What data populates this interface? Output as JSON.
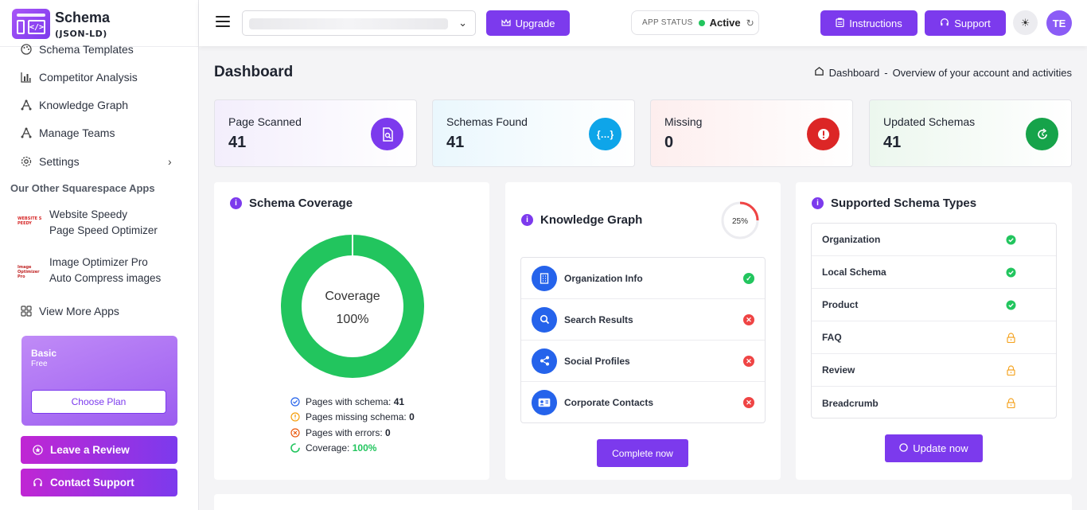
{
  "app": {
    "title": "Schema",
    "subtitle": "(JSON-LD)"
  },
  "sidebar": {
    "items": [
      {
        "label": "Schema Templates",
        "icon": "palette-icon"
      },
      {
        "label": "Competitor Analysis",
        "icon": "bar-chart-icon"
      },
      {
        "label": "Knowledge Graph",
        "icon": "graph-icon"
      },
      {
        "label": "Manage Teams",
        "icon": "team-icon"
      },
      {
        "label": "Settings",
        "icon": "gear-icon"
      }
    ],
    "section_label": "Our Other Squarespace Apps",
    "apps": [
      {
        "line1": "Website Speedy",
        "line2": "Page Speed Optimizer",
        "logo_text": "WEBSITE SPEEDY"
      },
      {
        "line1": "Image Optimizer Pro",
        "line2": "Auto Compress images",
        "logo_text": "Image Optimizer Pro"
      }
    ],
    "view_more": "View More Apps",
    "plan": {
      "name": "Basic",
      "tier": "Free",
      "button": "Choose Plan"
    },
    "review_button": "Leave a Review",
    "support_button": "Contact Support"
  },
  "header": {
    "upgrade": "Upgrade",
    "status_label": "APP STATUS",
    "status_value": "Active",
    "instructions": "Instructions",
    "support": "Support",
    "avatar": "TE"
  },
  "page": {
    "title": "Dashboard",
    "crumb_page": "Dashboard",
    "crumb_sep": "-",
    "crumb_desc": "Overview of your account and activities"
  },
  "stats": [
    {
      "label": "Page Scanned",
      "value": "41",
      "color": "#7c3aed",
      "icon": "page-search-icon"
    },
    {
      "label": "Schemas Found",
      "value": "41",
      "color": "#0ea5e9",
      "icon": "braces-icon"
    },
    {
      "label": "Missing",
      "value": "0",
      "color": "#dc2626",
      "icon": "alert-icon"
    },
    {
      "label": "Updated Schemas",
      "value": "41",
      "color": "#16a34a",
      "icon": "refresh-icon"
    }
  ],
  "coverage": {
    "title": "Schema Coverage",
    "center_label": "Coverage",
    "center_value": "100%",
    "percent": 100,
    "legend": [
      {
        "label": "Pages with schema:",
        "value": "41"
      },
      {
        "label": "Pages missing schema:",
        "value": "0"
      },
      {
        "label": "Pages with errors:",
        "value": "0"
      },
      {
        "label": "Coverage:",
        "value": "100%"
      }
    ],
    "color": "#22c55e"
  },
  "knowledge_graph": {
    "title": "Knowledge Graph",
    "progress_label": "25%",
    "progress": 0.25,
    "items": [
      {
        "label": "Organization Info",
        "icon": "building-icon",
        "done": true
      },
      {
        "label": "Search Results",
        "icon": "search-icon",
        "done": false
      },
      {
        "label": "Social Profiles",
        "icon": "share-icon",
        "done": false
      },
      {
        "label": "Corporate Contacts",
        "icon": "contact-card-icon",
        "done": false
      }
    ],
    "button": "Complete now"
  },
  "schema_types": {
    "title": "Supported Schema Types",
    "items": [
      {
        "label": "Organization",
        "status": "supported"
      },
      {
        "label": "Local Schema",
        "status": "supported"
      },
      {
        "label": "Product",
        "status": "supported"
      },
      {
        "label": "FAQ",
        "status": "locked"
      },
      {
        "label": "Review",
        "status": "locked"
      },
      {
        "label": "Breadcrumb",
        "status": "locked"
      }
    ],
    "button": "Update now"
  }
}
